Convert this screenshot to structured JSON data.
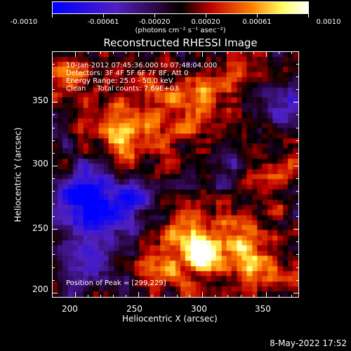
{
  "colorbar": {
    "labels": [
      "-0.0010",
      "-0.00061",
      "-0.00020",
      "0.00020",
      "0.00061",
      "0.0010"
    ],
    "unit": "(photons cm⁻² s⁻¹ asec⁻²)"
  },
  "info": {
    "time": "10-Jan-2012 07:45:36.000 to 07:48:04.000",
    "detectors": "Detectors: 3F 4F 5F 6F 7F 8F, Att 0",
    "energy": "Energy Range: 25.0 - 50.0 keV",
    "clean": "Clean     Total counts: 7.69E+03",
    "peak": "Position of Peak = [299,229]"
  },
  "footer": {
    "timestamp": "8-May-2022 17:52"
  },
  "chart_data": {
    "type": "heatmap",
    "title": "Reconstructed RHESSI Image",
    "xlabel": "Heliocentric X (arcsec)",
    "ylabel": "Heliocentric Y (arcsec)",
    "xlim": [
      182,
      376
    ],
    "ylim": [
      196,
      390
    ],
    "xticks": [
      200,
      250,
      300,
      350
    ],
    "yticks": [
      200,
      250,
      300,
      350
    ],
    "color_range": [
      -0.001,
      0.001
    ],
    "colormap": [
      "#0000ff",
      "#5020c0",
      "#000000",
      "#c00000",
      "#ff8000",
      "#ffff60",
      "#ffffff"
    ],
    "peak": [
      299,
      229
    ],
    "blobs": [
      {
        "x": 299,
        "y": 229,
        "amp": 0.00095,
        "sigma": 9
      },
      {
        "x": 285,
        "y": 250,
        "amp": 0.0006,
        "sigma": 14
      },
      {
        "x": 320,
        "y": 240,
        "amp": 0.00055,
        "sigma": 16
      },
      {
        "x": 270,
        "y": 215,
        "amp": 0.0005,
        "sigma": 14
      },
      {
        "x": 340,
        "y": 220,
        "amp": 0.0005,
        "sigma": 14
      },
      {
        "x": 260,
        "y": 340,
        "amp": 0.0005,
        "sigma": 18
      },
      {
        "x": 230,
        "y": 330,
        "amp": 0.00045,
        "sigma": 14
      },
      {
        "x": 300,
        "y": 350,
        "amp": 0.0004,
        "sigma": 16
      },
      {
        "x": 350,
        "y": 290,
        "amp": 0.00035,
        "sigma": 16
      },
      {
        "x": 245,
        "y": 305,
        "amp": 0.0004,
        "sigma": 12
      },
      {
        "x": 195,
        "y": 370,
        "amp": 0.0004,
        "sigma": 12
      },
      {
        "x": 330,
        "y": 380,
        "amp": 0.00035,
        "sigma": 12
      },
      {
        "x": 205,
        "y": 272,
        "amp": -0.0009,
        "sigma": 16
      },
      {
        "x": 240,
        "y": 275,
        "amp": -0.00065,
        "sigma": 18
      },
      {
        "x": 215,
        "y": 240,
        "amp": -0.00055,
        "sigma": 16
      },
      {
        "x": 365,
        "y": 345,
        "amp": -0.0005,
        "sigma": 12
      },
      {
        "x": 200,
        "y": 215,
        "amp": -0.00035,
        "sigma": 12
      },
      {
        "x": 325,
        "y": 300,
        "amp": -0.00035,
        "sigma": 12
      }
    ],
    "noise_amp": 0.0003,
    "grid": false
  }
}
